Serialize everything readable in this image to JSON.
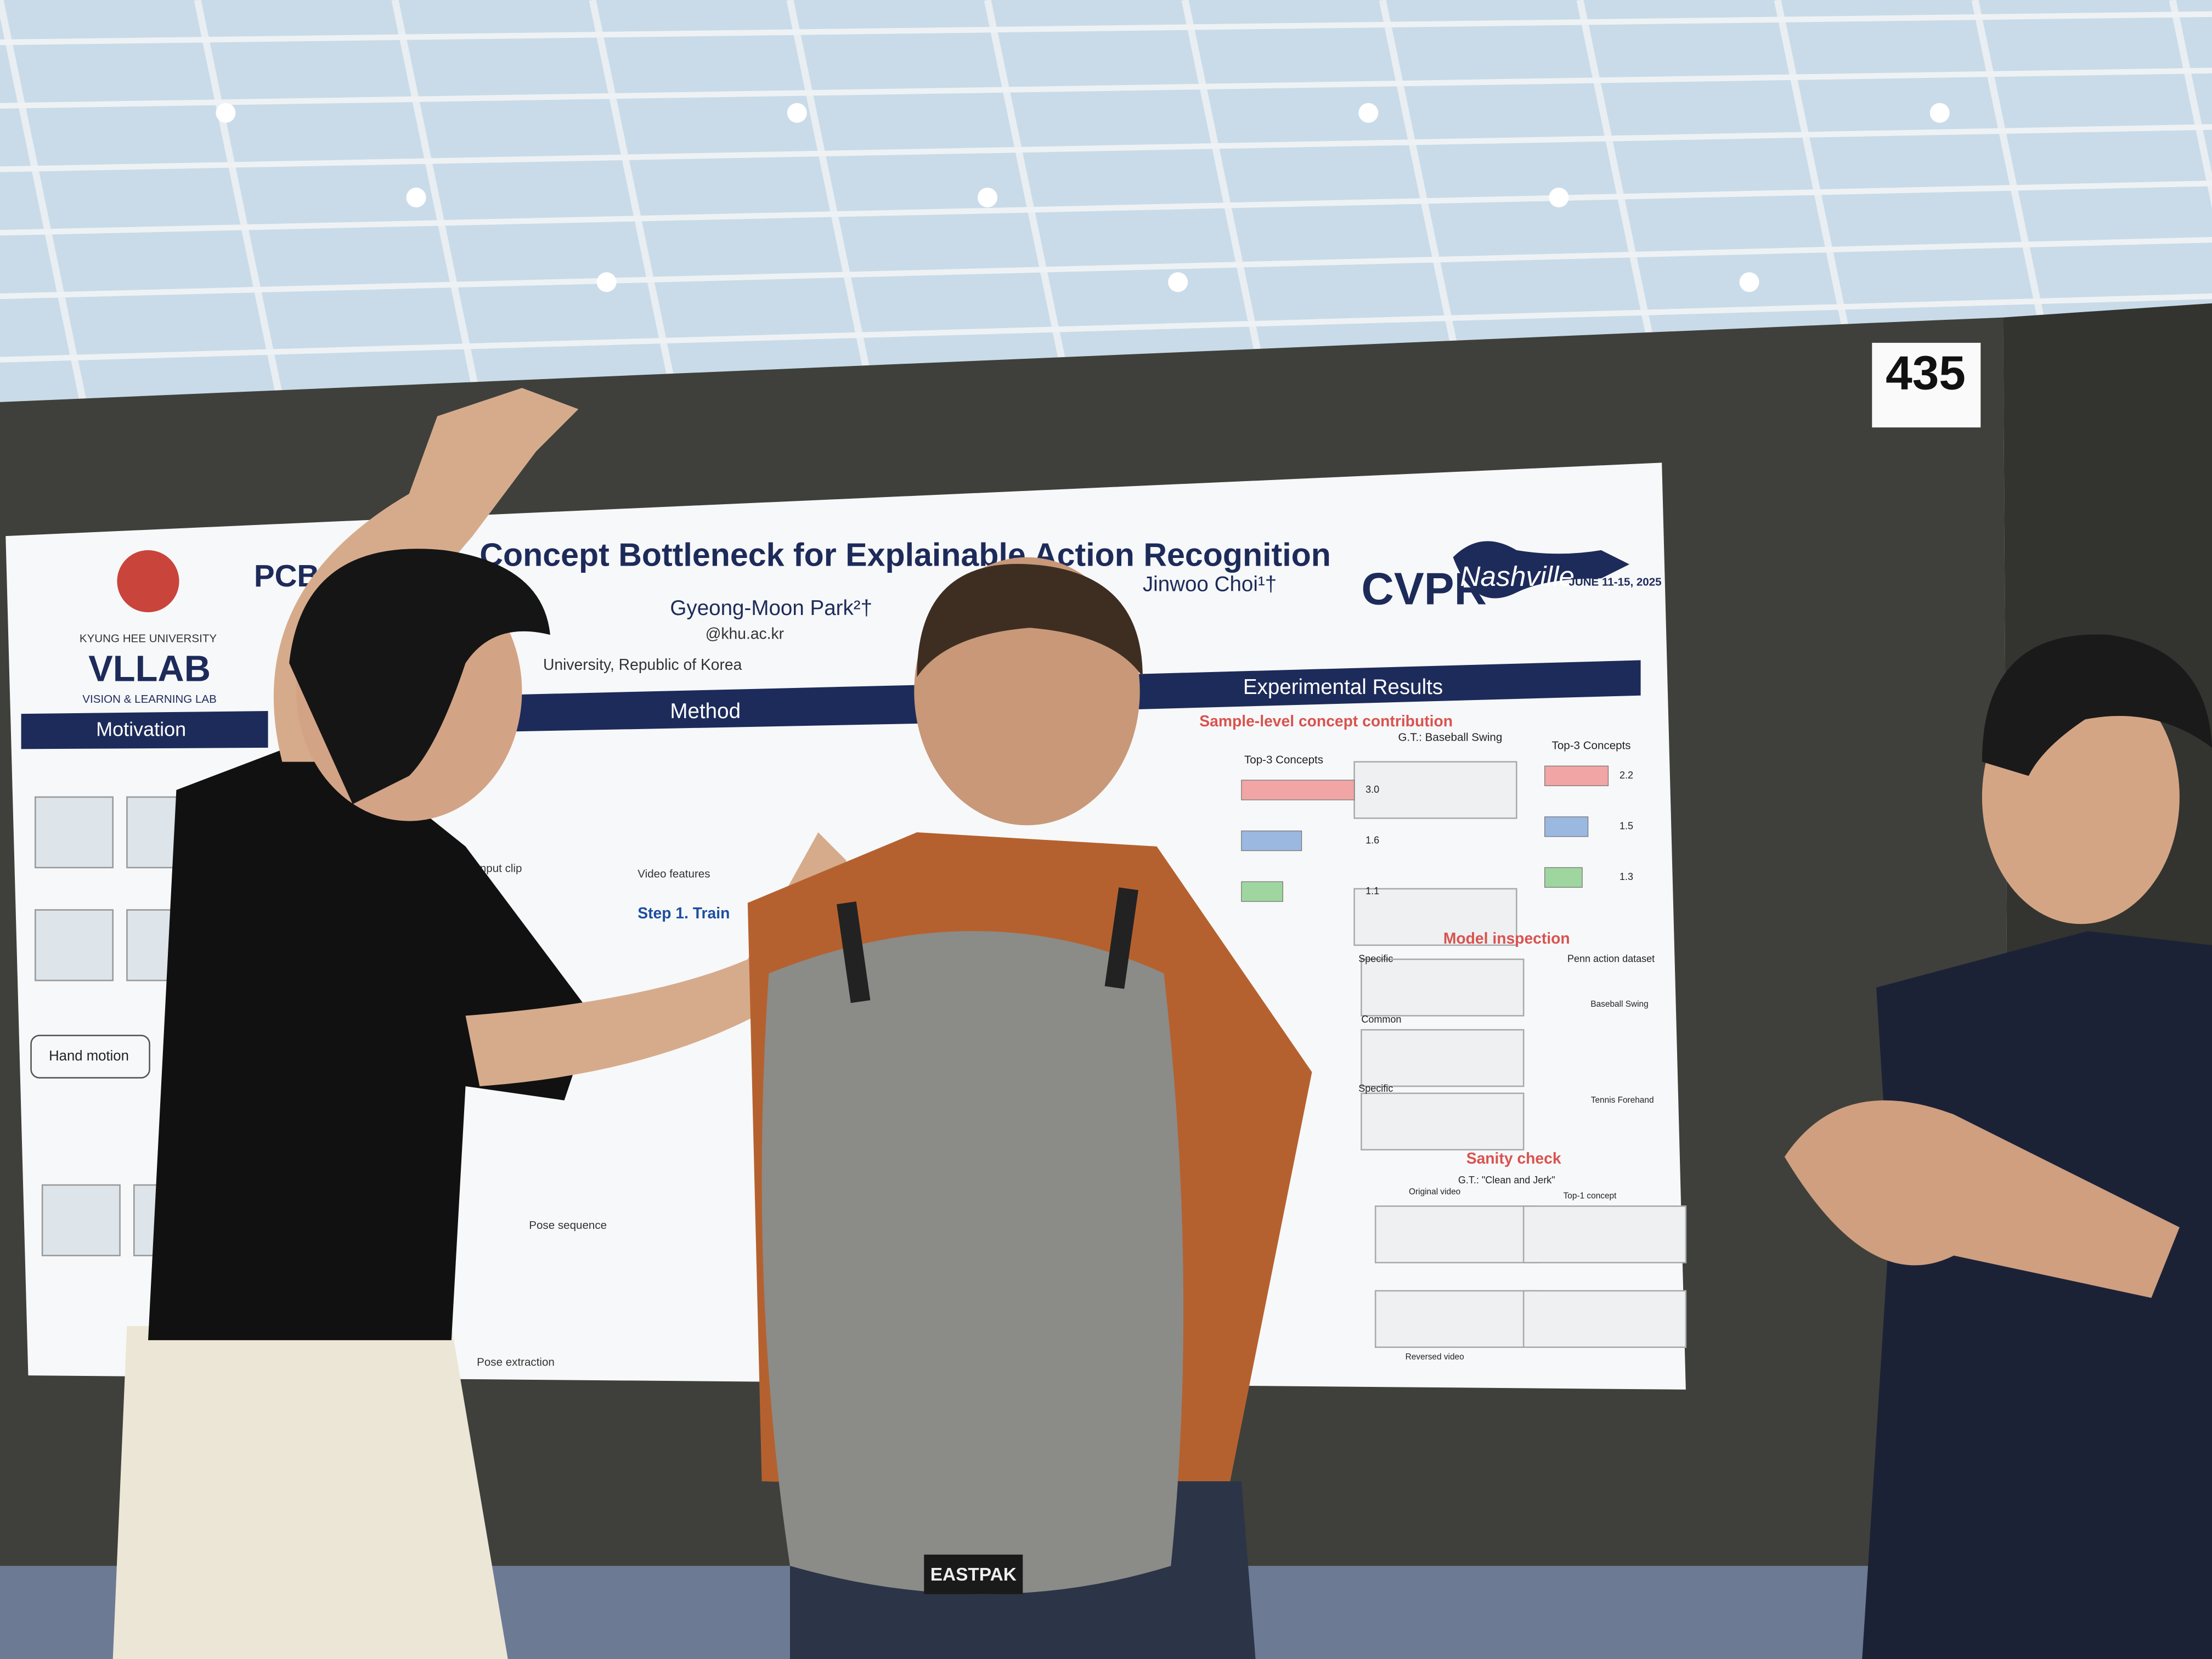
{
  "booth_number": "435",
  "poster": {
    "title_prefix": "PCBE",
    "title": "Concept Bottleneck for Explainable Action Recognition",
    "university": "KYUNG HEE UNIVERSITY",
    "lab": "VLLAB",
    "lab_subtitle": "VISION & LEARNING LAB",
    "conference": "CVPR",
    "conference_city": "Nashville",
    "conference_dates": "JUNE 11-15, 2025",
    "authors": [
      "Gyeong-Moon Park²†",
      "Jinwoo Choi¹†"
    ],
    "email": "@khu.ac.kr",
    "affiliation": "University, Republic of Korea",
    "sections": [
      "Motivation",
      "Method",
      "Experimental Results"
    ],
    "subsections": [
      "Sample-level concept contribution",
      "Model inspection",
      "Sanity check"
    ],
    "method_labels": [
      "Input clip",
      "Video features",
      "Step 1. Train",
      "Pose sequence",
      "Pose extraction"
    ],
    "hand_motion": "Hand motion",
    "results_label": "G.T.: Baseball Swing",
    "results": [
      {
        "heading": "Top-3 Concepts",
        "values": [
          3.0,
          1.6,
          1.1
        ],
        "value_labels": [
          "3.0",
          "1.6",
          "1.1"
        ]
      },
      {
        "heading": "Top-3 Concepts",
        "values": [
          2.2,
          1.5,
          1.3
        ]
      }
    ],
    "inspection_labels": [
      "Penn action dataset",
      "Specific",
      "Common",
      "Specific",
      "Baseball Swing",
      "Tennis Forehand"
    ],
    "sanity_gt": "G.T.: \"Clean and Jerk\"",
    "sanity_labels": [
      "Original video",
      "Reversed video",
      "Top-1 concept"
    ]
  },
  "backpack_brand": "EASTPAK"
}
